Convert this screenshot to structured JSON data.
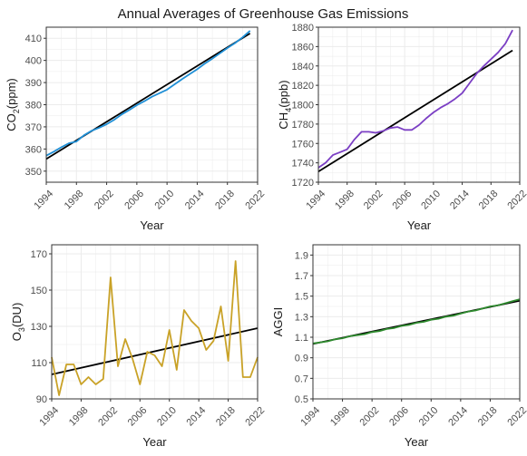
{
  "title": "Annual Averages of Greenhouse Gas Emissions",
  "colors": {
    "co2": "#1f8fd6",
    "ch4": "#7b3fc4",
    "o3": "#c9a227",
    "aggi": "#2e8b2e",
    "trend": "#000000",
    "grid": "#ebebeb",
    "panel_border": "#333333"
  },
  "chart_data": [
    {
      "id": "co2",
      "type": "line",
      "xlabel": "Year",
      "ylabel": {
        "base": "CO",
        "sub": "2",
        "suffix": "(ppm)"
      },
      "xlim": [
        1994,
        2022
      ],
      "ylim": [
        345,
        415
      ],
      "xticks": [
        1994,
        1998,
        2002,
        2006,
        2010,
        2014,
        2018,
        2022
      ],
      "yticks": [
        350,
        360,
        370,
        380,
        390,
        400,
        410
      ],
      "x": [
        1994,
        1995,
        1996,
        1997,
        1998,
        1999,
        2000,
        2001,
        2002,
        2003,
        2004,
        2005,
        2006,
        2007,
        2008,
        2009,
        2010,
        2011,
        2012,
        2013,
        2014,
        2015,
        2016,
        2017,
        2018,
        2019,
        2020,
        2021
      ],
      "values": [
        357.0,
        358.8,
        360.8,
        362.6,
        363.4,
        366.2,
        368.2,
        369.6,
        371.2,
        373.2,
        375.6,
        377.6,
        379.8,
        381.6,
        383.6,
        385.2,
        386.8,
        389.2,
        391.6,
        393.8,
        396.0,
        398.6,
        400.8,
        403.2,
        405.6,
        407.8,
        410.4,
        413.4
      ],
      "trend": [
        355.5,
        412.2
      ]
    },
    {
      "id": "ch4",
      "type": "line",
      "xlabel": "Year",
      "ylabel": {
        "base": "CH",
        "sub": "4",
        "suffix": "(ppb)"
      },
      "xlim": [
        1994,
        2022
      ],
      "ylim": [
        1720,
        1880
      ],
      "xticks": [
        1994,
        1998,
        2002,
        2006,
        2010,
        2014,
        2018,
        2022
      ],
      "yticks": [
        1720,
        1740,
        1760,
        1780,
        1800,
        1820,
        1840,
        1860,
        1880
      ],
      "x": [
        1994,
        1995,
        1996,
        1997,
        1998,
        1999,
        2000,
        2001,
        2002,
        2003,
        2004,
        2005,
        2006,
        2007,
        2008,
        2009,
        2010,
        2011,
        2012,
        2013,
        2014,
        2015,
        2016,
        2017,
        2018,
        2019,
        2020,
        2021
      ],
      "values": [
        1735,
        1740,
        1748,
        1751,
        1754,
        1764,
        1772,
        1772,
        1771,
        1773,
        1776,
        1777,
        1774,
        1774,
        1779,
        1786,
        1792,
        1797,
        1801,
        1806,
        1812,
        1822,
        1832,
        1840,
        1847,
        1854,
        1863,
        1877
      ],
      "trend": [
        1731,
        1856
      ]
    },
    {
      "id": "o3",
      "type": "line",
      "xlabel": "Year",
      "ylabel": {
        "base": "O",
        "sub": "3",
        "suffix": "(DU)"
      },
      "xlim": [
        1994,
        2022
      ],
      "ylim": [
        90,
        175
      ],
      "xticks": [
        1994,
        1998,
        2002,
        2006,
        2010,
        2014,
        2018,
        2022
      ],
      "yticks": [
        90,
        110,
        130,
        150,
        170
      ],
      "x": [
        1994,
        1995,
        1996,
        1997,
        1998,
        1999,
        2000,
        2001,
        2002,
        2003,
        2004,
        2005,
        2006,
        2007,
        2008,
        2009,
        2010,
        2011,
        2012,
        2013,
        2014,
        2015,
        2016,
        2017,
        2018,
        2019,
        2020,
        2021,
        2022
      ],
      "values": [
        113,
        92,
        109,
        109,
        98,
        102,
        98,
        101,
        157,
        108,
        123,
        112,
        98,
        116,
        114,
        108,
        128,
        106,
        139,
        133,
        129,
        117,
        122,
        141,
        111,
        166,
        102,
        102,
        113
      ],
      "trend": [
        103.5,
        129.0
      ]
    },
    {
      "id": "aggi",
      "type": "line",
      "xlabel": "Year",
      "ylabel": {
        "base": "AGGI",
        "sub": "",
        "suffix": ""
      },
      "xlim": [
        1994,
        2022
      ],
      "ylim": [
        0.5,
        2.0
      ],
      "xticks": [
        1994,
        1998,
        2002,
        2006,
        2010,
        2014,
        2018,
        2022
      ],
      "yticks": [
        0.5,
        0.7,
        0.9,
        1.1,
        1.3,
        1.5,
        1.7,
        1.9
      ],
      "x": [
        1994,
        1995,
        1996,
        1997,
        1998,
        1999,
        2000,
        2001,
        2002,
        2003,
        2004,
        2005,
        2006,
        2007,
        2008,
        2009,
        2010,
        2011,
        2012,
        2013,
        2014,
        2015,
        2016,
        2017,
        2018,
        2019,
        2020,
        2021,
        2022
      ],
      "values": [
        1.04,
        1.05,
        1.06,
        1.08,
        1.09,
        1.11,
        1.12,
        1.13,
        1.15,
        1.16,
        1.18,
        1.19,
        1.21,
        1.22,
        1.24,
        1.25,
        1.27,
        1.28,
        1.3,
        1.31,
        1.33,
        1.35,
        1.36,
        1.38,
        1.4,
        1.41,
        1.43,
        1.45,
        1.47
      ],
      "trend": [
        1.035,
        1.455
      ]
    }
  ]
}
